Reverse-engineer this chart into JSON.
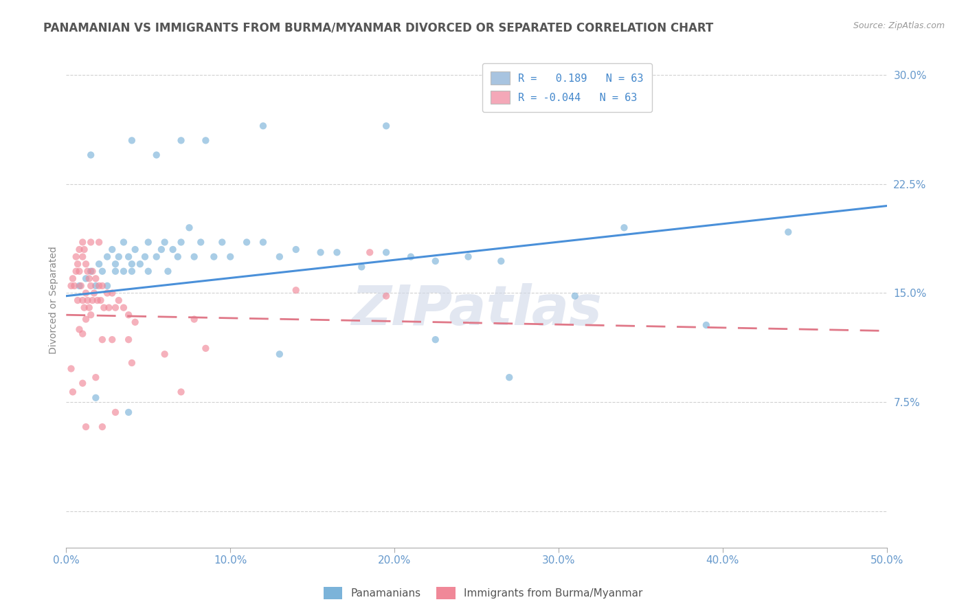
{
  "title": "PANAMANIAN VS IMMIGRANTS FROM BURMA/MYANMAR DIVORCED OR SEPARATED CORRELATION CHART",
  "source": "Source: ZipAtlas.com",
  "ylabel_label": "Divorced or Separated",
  "xlim": [
    0.0,
    0.5
  ],
  "ylim": [
    -0.025,
    0.315
  ],
  "xticks": [
    0.0,
    0.1,
    0.2,
    0.3,
    0.4,
    0.5
  ],
  "yticks": [
    0.0,
    0.075,
    0.15,
    0.225,
    0.3
  ],
  "ytick_labels": [
    "",
    "7.5%",
    "15.0%",
    "22.5%",
    "30.0%"
  ],
  "xtick_labels": [
    "0.0%",
    "",
    "",
    "",
    "",
    "",
    "",
    "",
    "",
    "",
    "10.0%",
    "",
    "",
    "",
    "",
    "",
    "",
    "",
    "",
    "",
    "20.0%",
    "",
    "",
    "",
    "",
    "",
    "",
    "",
    "",
    "",
    "30.0%",
    "",
    "",
    "",
    "",
    "",
    "",
    "",
    "",
    "",
    "40.0%",
    "",
    "",
    "",
    "",
    "",
    "",
    "",
    "",
    "",
    "50.0%"
  ],
  "xticks_major": [
    0.0,
    0.1,
    0.2,
    0.3,
    0.4,
    0.5
  ],
  "xtick_major_labels": [
    "0.0%",
    "10.0%",
    "20.0%",
    "30.0%",
    "40.0%",
    "50.0%"
  ],
  "legend_entries": [
    {
      "label": "R =   0.189   N = 63",
      "color": "#a8c4e0"
    },
    {
      "label": "R = -0.044   N = 63",
      "color": "#f4a8b8"
    }
  ],
  "blue_scatter_color": "#7bb3d9",
  "pink_scatter_color": "#f08898",
  "blue_line_color": "#4a90d9",
  "pink_line_color": "#e07888",
  "watermark_text": "ZIPatlas",
  "watermark_color": "#d0d8e8",
  "title_color": "#555555",
  "axis_tick_color": "#6699cc",
  "background_color": "#ffffff",
  "grid_color": "#cccccc",
  "title_fontsize": 12,
  "axis_label_fontsize": 10,
  "tick_fontsize": 11,
  "scatter_size": 55,
  "scatter_alpha": 0.65,
  "blue_line_x0": 0.0,
  "blue_line_x1": 0.5,
  "blue_line_y0": 0.148,
  "blue_line_y1": 0.21,
  "pink_line_x0": 0.0,
  "pink_line_x1": 0.5,
  "pink_line_y0": 0.135,
  "pink_line_y1": 0.124,
  "blue_points": [
    [
      0.008,
      0.155
    ],
    [
      0.012,
      0.16
    ],
    [
      0.015,
      0.165
    ],
    [
      0.018,
      0.155
    ],
    [
      0.02,
      0.17
    ],
    [
      0.022,
      0.165
    ],
    [
      0.025,
      0.175
    ],
    [
      0.025,
      0.155
    ],
    [
      0.028,
      0.18
    ],
    [
      0.03,
      0.17
    ],
    [
      0.03,
      0.165
    ],
    [
      0.032,
      0.175
    ],
    [
      0.035,
      0.185
    ],
    [
      0.035,
      0.165
    ],
    [
      0.038,
      0.175
    ],
    [
      0.04,
      0.17
    ],
    [
      0.04,
      0.165
    ],
    [
      0.042,
      0.18
    ],
    [
      0.045,
      0.17
    ],
    [
      0.048,
      0.175
    ],
    [
      0.05,
      0.185
    ],
    [
      0.05,
      0.165
    ],
    [
      0.055,
      0.175
    ],
    [
      0.058,
      0.18
    ],
    [
      0.06,
      0.185
    ],
    [
      0.062,
      0.165
    ],
    [
      0.065,
      0.18
    ],
    [
      0.068,
      0.175
    ],
    [
      0.07,
      0.185
    ],
    [
      0.075,
      0.195
    ],
    [
      0.078,
      0.175
    ],
    [
      0.082,
      0.185
    ],
    [
      0.09,
      0.175
    ],
    [
      0.095,
      0.185
    ],
    [
      0.1,
      0.175
    ],
    [
      0.11,
      0.185
    ],
    [
      0.12,
      0.185
    ],
    [
      0.13,
      0.175
    ],
    [
      0.14,
      0.18
    ],
    [
      0.155,
      0.178
    ],
    [
      0.165,
      0.178
    ],
    [
      0.18,
      0.168
    ],
    [
      0.195,
      0.178
    ],
    [
      0.21,
      0.175
    ],
    [
      0.225,
      0.172
    ],
    [
      0.245,
      0.175
    ],
    [
      0.265,
      0.172
    ],
    [
      0.015,
      0.245
    ],
    [
      0.04,
      0.255
    ],
    [
      0.055,
      0.245
    ],
    [
      0.07,
      0.255
    ],
    [
      0.085,
      0.255
    ],
    [
      0.12,
      0.265
    ],
    [
      0.195,
      0.265
    ],
    [
      0.018,
      0.078
    ],
    [
      0.038,
      0.068
    ],
    [
      0.34,
      0.195
    ],
    [
      0.44,
      0.192
    ],
    [
      0.31,
      0.148
    ],
    [
      0.39,
      0.128
    ],
    [
      0.225,
      0.118
    ],
    [
      0.13,
      0.108
    ],
    [
      0.27,
      0.092
    ]
  ],
  "pink_points": [
    [
      0.003,
      0.155
    ],
    [
      0.004,
      0.16
    ],
    [
      0.005,
      0.155
    ],
    [
      0.006,
      0.165
    ],
    [
      0.007,
      0.17
    ],
    [
      0.007,
      0.145
    ],
    [
      0.008,
      0.165
    ],
    [
      0.009,
      0.155
    ],
    [
      0.01,
      0.175
    ],
    [
      0.01,
      0.145
    ],
    [
      0.011,
      0.18
    ],
    [
      0.011,
      0.14
    ],
    [
      0.012,
      0.17
    ],
    [
      0.012,
      0.15
    ],
    [
      0.013,
      0.165
    ],
    [
      0.013,
      0.145
    ],
    [
      0.014,
      0.16
    ],
    [
      0.014,
      0.14
    ],
    [
      0.015,
      0.155
    ],
    [
      0.015,
      0.135
    ],
    [
      0.016,
      0.165
    ],
    [
      0.016,
      0.145
    ],
    [
      0.017,
      0.15
    ],
    [
      0.018,
      0.16
    ],
    [
      0.019,
      0.145
    ],
    [
      0.02,
      0.155
    ],
    [
      0.021,
      0.145
    ],
    [
      0.022,
      0.155
    ],
    [
      0.023,
      0.14
    ],
    [
      0.025,
      0.15
    ],
    [
      0.026,
      0.14
    ],
    [
      0.028,
      0.15
    ],
    [
      0.03,
      0.14
    ],
    [
      0.032,
      0.145
    ],
    [
      0.035,
      0.14
    ],
    [
      0.038,
      0.135
    ],
    [
      0.042,
      0.13
    ],
    [
      0.006,
      0.175
    ],
    [
      0.008,
      0.18
    ],
    [
      0.01,
      0.185
    ],
    [
      0.015,
      0.185
    ],
    [
      0.02,
      0.185
    ],
    [
      0.003,
      0.098
    ],
    [
      0.004,
      0.082
    ],
    [
      0.01,
      0.088
    ],
    [
      0.018,
      0.092
    ],
    [
      0.022,
      0.118
    ],
    [
      0.028,
      0.118
    ],
    [
      0.038,
      0.118
    ],
    [
      0.04,
      0.102
    ],
    [
      0.06,
      0.108
    ],
    [
      0.085,
      0.112
    ],
    [
      0.012,
      0.058
    ],
    [
      0.022,
      0.058
    ],
    [
      0.03,
      0.068
    ],
    [
      0.185,
      0.178
    ],
    [
      0.14,
      0.152
    ],
    [
      0.195,
      0.148
    ],
    [
      0.07,
      0.082
    ],
    [
      0.078,
      0.132
    ],
    [
      0.008,
      0.125
    ],
    [
      0.01,
      0.122
    ],
    [
      0.012,
      0.132
    ]
  ]
}
